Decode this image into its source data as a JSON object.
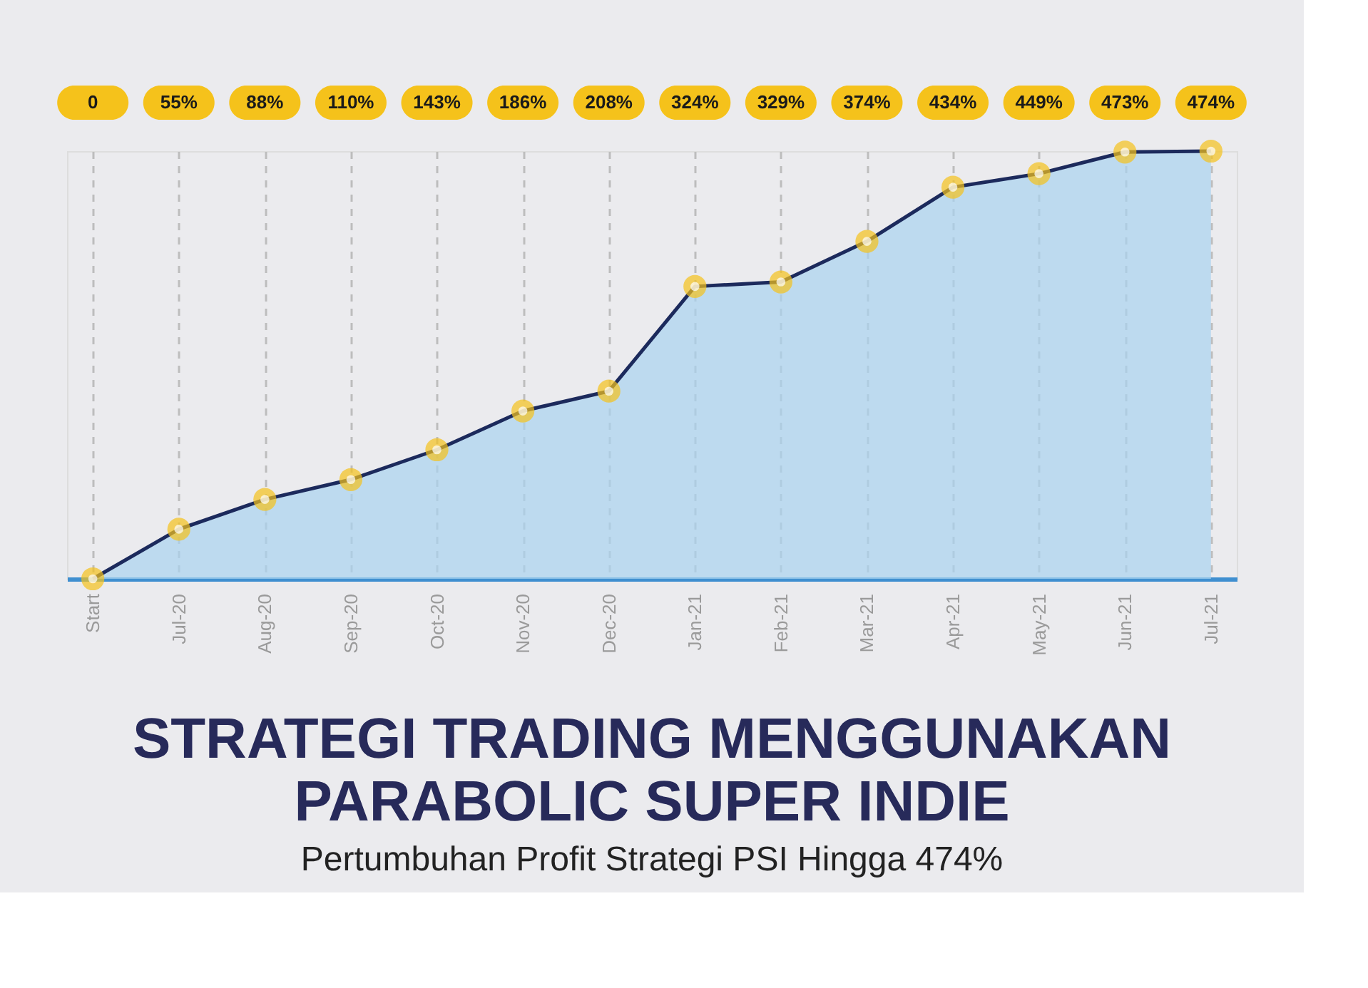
{
  "chart_data": {
    "type": "area",
    "title": "STRATEGI TRADING MENGGUNAKAN PARABOLIC SUPER INDIE",
    "subtitle": "Pertumbuhan Profit Strategi PSI Hingga 474%",
    "categories": [
      "Start",
      "Jul-20",
      "Aug-20",
      "Sep-20",
      "Oct-20",
      "Nov-20",
      "Dec-20",
      "Jan-21",
      "Feb-21",
      "Mar-21",
      "Apr-21",
      "May-21",
      "Jun-21",
      "Jul-21"
    ],
    "series": [
      {
        "color": "#1c2a5c",
        "values": [
          0,
          55,
          88,
          110,
          143,
          186,
          208,
          324,
          329,
          374,
          434,
          449,
          473,
          474
        ],
        "value_labels": [
          "0",
          "55%",
          "88%",
          "110%",
          "143%",
          "186%",
          "208%",
          "324%",
          "329%",
          "374%",
          "434%",
          "449%",
          "473%",
          "474%"
        ]
      }
    ],
    "marker": "circle",
    "grid": "x"
  }
}
